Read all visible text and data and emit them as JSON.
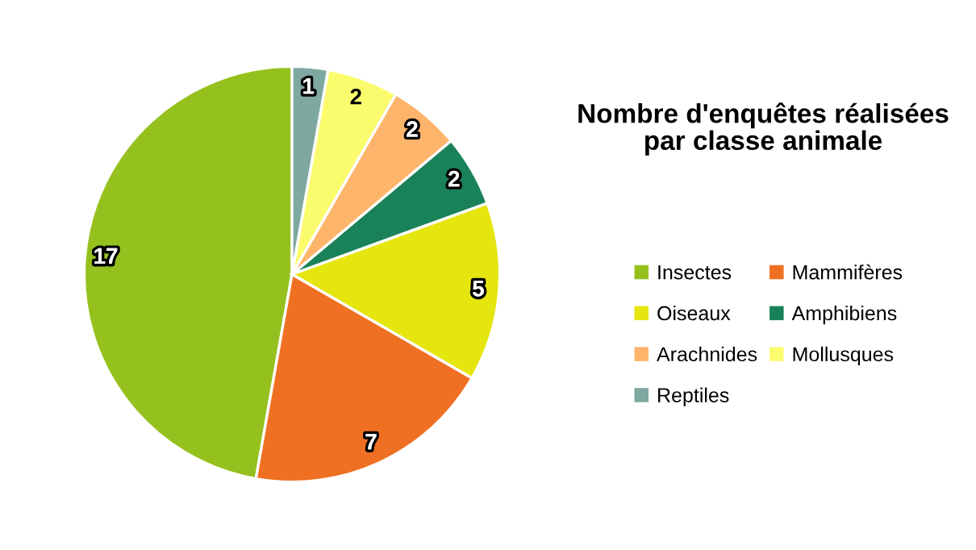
{
  "chart_data": {
    "type": "pie",
    "title": "Nombre d'enquêtes réalisées\npar classe animale",
    "categories": [
      "Insectes",
      "Mammifères",
      "Oiseaux",
      "Amphibiens",
      "Arachnides",
      "Mollusques",
      "Reptiles"
    ],
    "values": [
      17,
      7,
      5,
      2,
      2,
      2,
      1
    ],
    "colors": [
      "#95c11f",
      "#f07023",
      "#e5e510",
      "#1a8258",
      "#fdb46b",
      "#fbfb6e",
      "#7fa8a0"
    ],
    "data_labels": true,
    "legend": "right"
  }
}
